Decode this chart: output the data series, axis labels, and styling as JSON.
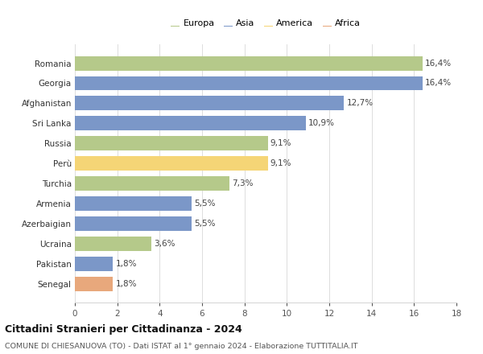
{
  "countries": [
    "Romania",
    "Georgia",
    "Afghanistan",
    "Sri Lanka",
    "Russia",
    "Perù",
    "Turchia",
    "Armenia",
    "Azerbaigian",
    "Ucraina",
    "Pakistan",
    "Senegal"
  ],
  "values": [
    16.4,
    16.4,
    12.7,
    10.9,
    9.1,
    9.1,
    7.3,
    5.5,
    5.5,
    3.6,
    1.8,
    1.8
  ],
  "labels": [
    "16,4%",
    "16,4%",
    "12,7%",
    "10,9%",
    "9,1%",
    "9,1%",
    "7,3%",
    "5,5%",
    "5,5%",
    "3,6%",
    "1,8%",
    "1,8%"
  ],
  "continents": [
    "Europa",
    "Asia",
    "Asia",
    "Asia",
    "Europa",
    "America",
    "Europa",
    "Asia",
    "Asia",
    "Europa",
    "Asia",
    "Africa"
  ],
  "colors": {
    "Europa": "#b5c98a",
    "Asia": "#7b97c8",
    "America": "#f5d576",
    "Africa": "#e8a87c"
  },
  "legend_order": [
    "Europa",
    "Asia",
    "America",
    "Africa"
  ],
  "legend_colors": [
    "#b5c98a",
    "#7b97c8",
    "#f5d576",
    "#e8a87c"
  ],
  "xlim": [
    0,
    18
  ],
  "xticks": [
    0,
    2,
    4,
    6,
    8,
    10,
    12,
    14,
    16,
    18
  ],
  "title": "Cittadini Stranieri per Cittadinanza - 2024",
  "subtitle": "COMUNE DI CHIESANUOVA (TO) - Dati ISTAT al 1° gennaio 2024 - Elaborazione TUTTITALIA.IT",
  "background_color": "#ffffff",
  "bar_height": 0.72,
  "bar_alpha": 1.0,
  "label_fontsize": 7.5,
  "ytick_fontsize": 7.5,
  "xtick_fontsize": 7.5,
  "legend_fontsize": 8.0
}
